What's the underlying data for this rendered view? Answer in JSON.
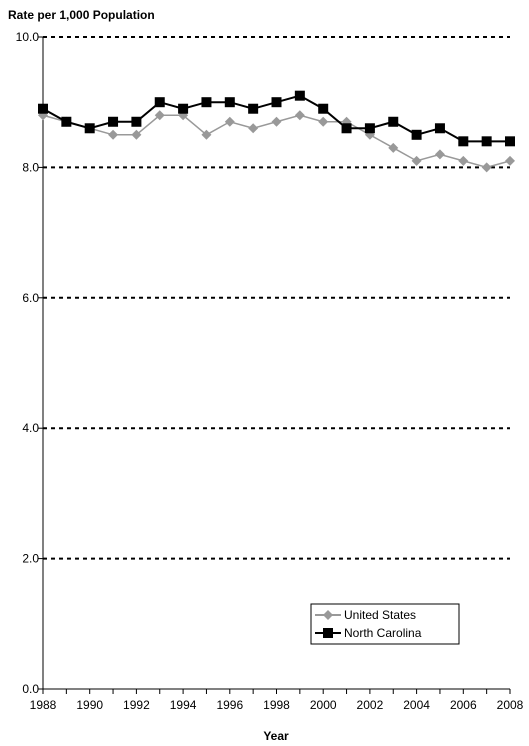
{
  "chart_data": {
    "type": "line",
    "ylabel": "Rate per 1,000 Population",
    "xlabel": "Year",
    "ylim": [
      0,
      10
    ],
    "yticks": [
      "0.0",
      "2.0",
      "4.0",
      "6.0",
      "8.0",
      "10.0"
    ],
    "x": [
      1988,
      1989,
      1990,
      1991,
      1992,
      1993,
      1994,
      1995,
      1996,
      1997,
      1998,
      1999,
      2000,
      2001,
      2002,
      2003,
      2004,
      2005,
      2006,
      2007,
      2008
    ],
    "xtick_labels": [
      "1988",
      "1990",
      "1992",
      "1994",
      "1996",
      "1998",
      "2000",
      "2002",
      "2004",
      "2006",
      "2008"
    ],
    "grid": "horizontal dotted",
    "legend_position": "bottom-right",
    "series": [
      {
        "name": "United States",
        "color": "#999999",
        "marker": "diamond",
        "values": [
          8.8,
          8.7,
          8.6,
          8.5,
          8.5,
          8.8,
          8.8,
          8.5,
          8.7,
          8.6,
          8.7,
          8.8,
          8.7,
          8.7,
          8.5,
          8.3,
          8.1,
          8.2,
          8.1,
          8.0,
          8.1
        ]
      },
      {
        "name": "North Carolina",
        "color": "#000000",
        "marker": "square",
        "values": [
          8.9,
          8.7,
          8.6,
          8.7,
          8.7,
          9.0,
          8.9,
          9.0,
          9.0,
          8.9,
          9.0,
          9.1,
          8.9,
          8.6,
          8.6,
          8.7,
          8.5,
          8.6,
          8.4,
          8.4,
          8.4
        ]
      }
    ]
  }
}
